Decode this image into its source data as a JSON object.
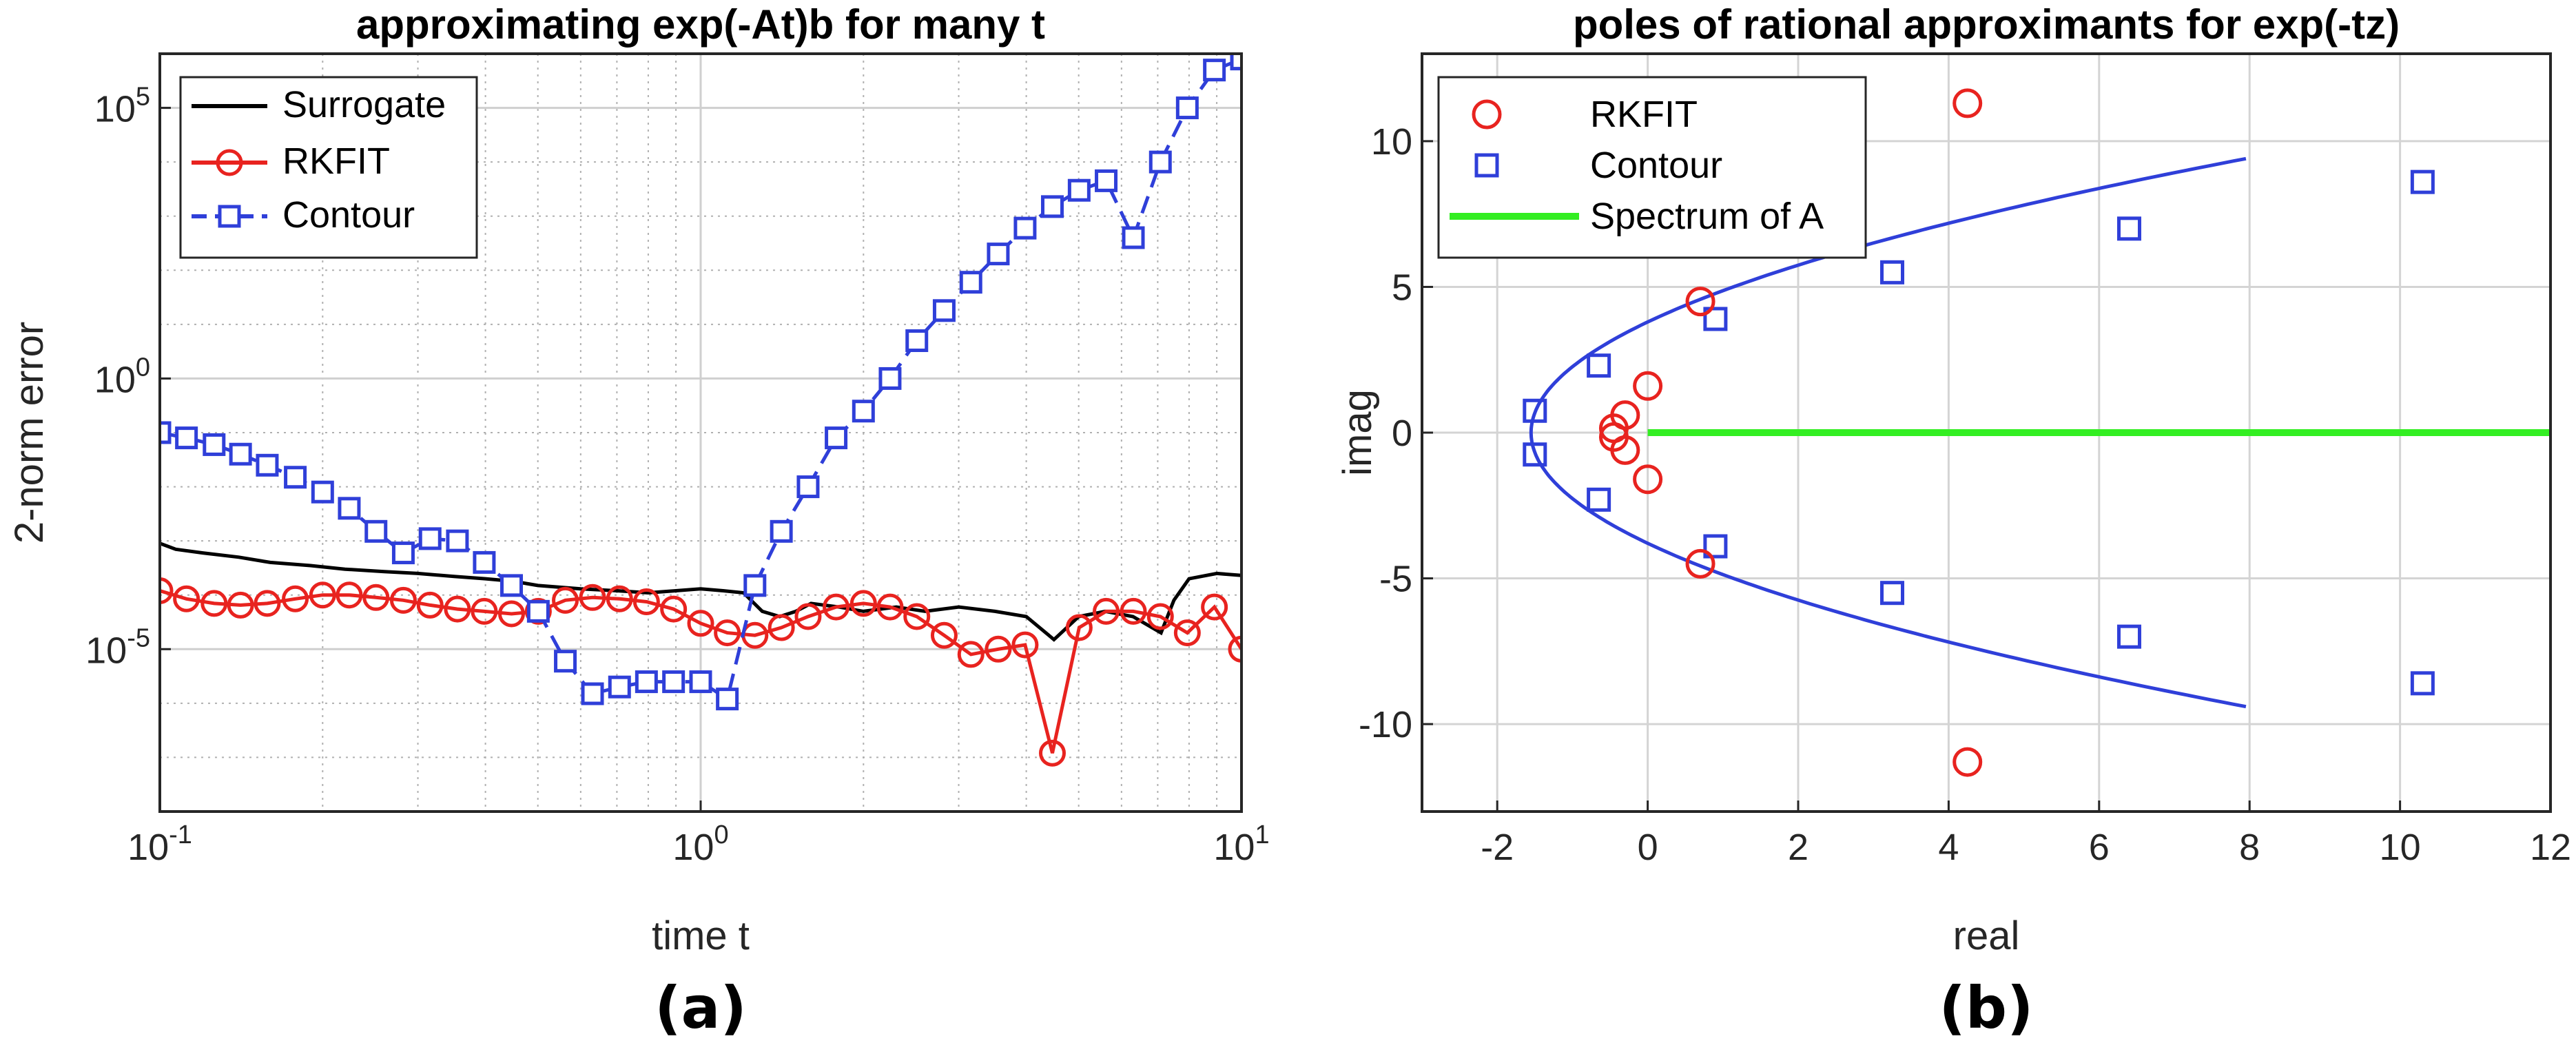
{
  "colors": {
    "surrogate": "#000000",
    "rkfit": "#e8231f",
    "contour": "#2f3fd9",
    "spectrum": "#33ee22",
    "grid": "#d9d9d9"
  },
  "chart_data": [
    {
      "type": "line",
      "panel_label": "(a)",
      "title": "approximating exp(-At)b for many t",
      "xlabel": "time t",
      "ylabel": "2-norm error",
      "xscale": "log",
      "yscale": "log",
      "xlim": [
        0.1,
        10
      ],
      "ylim": [
        1e-08,
        1000000.0
      ],
      "x_ticks": [
        {
          "value": 0.1,
          "base": "10",
          "exp": "-1"
        },
        {
          "value": 1,
          "base": "10",
          "exp": "0"
        },
        {
          "value": 10,
          "base": "10",
          "exp": "1"
        }
      ],
      "y_ticks": [
        {
          "value": 1e-05,
          "base": "10",
          "exp": "-5"
        },
        {
          "value": 1,
          "base": "10",
          "exp": "0"
        },
        {
          "value": 100000.0,
          "base": "10",
          "exp": "5"
        }
      ],
      "grid": true,
      "legend_position": "top-left",
      "series": [
        {
          "name": "Surrogate",
          "style": "solid-line",
          "x": [
            0.1,
            0.107,
            0.12,
            0.14,
            0.16,
            0.19,
            0.22,
            0.26,
            0.3,
            0.35,
            0.4,
            0.45,
            0.5,
            0.6,
            0.7,
            0.8,
            0.9,
            1.0,
            1.1,
            1.2,
            1.3,
            1.4,
            1.5,
            1.6,
            1.8,
            2.0,
            2.3,
            2.6,
            3.0,
            3.5,
            4.0,
            4.5,
            5.0,
            5.6,
            6.3,
            7.1,
            7.5,
            8.0,
            9.0,
            10.0
          ],
          "y": [
            0.0009,
            0.0007,
            0.0006,
            0.0005,
            0.0004,
            0.00035,
            0.0003,
            0.00027,
            0.00025,
            0.00022,
            0.0002,
            0.00018,
            0.00015,
            0.00013,
            0.00012,
            0.00011,
            0.00012,
            0.00013,
            0.00012,
            0.00011,
            5e-05,
            4e-05,
            5e-05,
            7e-05,
            6e-05,
            5e-05,
            6e-05,
            5e-05,
            6e-05,
            5e-05,
            4e-05,
            1.5e-05,
            4e-05,
            5e-05,
            4e-05,
            2e-05,
            8e-05,
            0.0002,
            0.00025,
            0.00023
          ]
        },
        {
          "name": "RKFIT",
          "style": "line-circle-marker",
          "x": [
            0.1,
            0.112,
            0.126,
            0.141,
            0.158,
            0.178,
            0.2,
            0.224,
            0.251,
            0.282,
            0.316,
            0.355,
            0.398,
            0.447,
            0.501,
            0.562,
            0.631,
            0.708,
            0.794,
            0.891,
            1.0,
            1.12,
            1.26,
            1.41,
            1.58,
            1.78,
            2.0,
            2.24,
            2.51,
            2.82,
            3.16,
            3.55,
            3.98,
            4.47,
            5.01,
            5.62,
            6.31,
            7.08,
            7.94,
            8.91,
            10.0
          ],
          "y": [
            0.00012,
            8.5e-05,
            7e-05,
            6.5e-05,
            7e-05,
            8.5e-05,
            0.0001,
            0.0001,
            9e-05,
            8e-05,
            6.5e-05,
            5.5e-05,
            5e-05,
            4.5e-05,
            5e-05,
            8e-05,
            9e-05,
            8.5e-05,
            7.5e-05,
            5.5e-05,
            3e-05,
            2e-05,
            1.8e-05,
            2.5e-05,
            4e-05,
            6e-05,
            7e-05,
            6e-05,
            4e-05,
            1.8e-05,
            8e-06,
            1e-05,
            1.2e-05,
            1.2e-07,
            2.5e-05,
            5e-05,
            5e-05,
            4e-05,
            2e-05,
            6e-05,
            1e-05
          ]
        },
        {
          "name": "Contour",
          "style": "dashed-line-square-marker",
          "x": [
            0.1,
            0.112,
            0.126,
            0.141,
            0.158,
            0.178,
            0.2,
            0.224,
            0.251,
            0.282,
            0.316,
            0.355,
            0.398,
            0.447,
            0.501,
            0.562,
            0.631,
            0.708,
            0.794,
            0.891,
            1.0,
            1.12,
            1.26,
            1.41,
            1.58,
            1.78,
            2.0,
            2.24,
            2.51,
            2.82,
            3.16,
            3.55,
            3.98,
            4.47,
            5.01,
            5.62,
            6.31,
            7.08,
            7.94,
            8.91,
            10.0
          ],
          "y": [
            0.1,
            0.08,
            0.06,
            0.04,
            0.025,
            0.015,
            0.008,
            0.004,
            0.0015,
            0.0006,
            0.0011,
            0.001,
            0.0004,
            0.00015,
            5e-05,
            6e-06,
            1.5e-06,
            2e-06,
            2.5e-06,
            2.5e-06,
            2.5e-06,
            1.2e-06,
            0.00015,
            0.0015,
            0.01,
            0.08,
            0.25,
            1.0,
            5.0,
            18.0,
            60.0,
            200.0,
            600.0,
            1500.0,
            3000.0,
            4500.0,
            400.0,
            10000.0,
            100000.0,
            500000.0,
            800000.0
          ]
        }
      ]
    },
    {
      "type": "scatter",
      "panel_label": "(b)",
      "title": "poles of rational approximants for exp(-tz)",
      "xlabel": "real",
      "ylabel": "imag",
      "xlim": [
        -3,
        12
      ],
      "ylim": [
        -13,
        13
      ],
      "x_ticks": [
        "-2",
        "0",
        "2",
        "4",
        "6",
        "8",
        "10",
        "12"
      ],
      "y_ticks": [
        "-10",
        "-5",
        "0",
        "5",
        "10"
      ],
      "grid": true,
      "legend_position": "top-left",
      "series": [
        {
          "name": "RKFIT",
          "marker": "circle",
          "points": [
            [
              4.25,
              11.3
            ],
            [
              4.25,
              -11.3
            ],
            [
              0.7,
              4.5
            ],
            [
              0.7,
              -4.5
            ],
            [
              0,
              1.6
            ],
            [
              0,
              -1.6
            ],
            [
              -0.3,
              0.6
            ],
            [
              -0.3,
              -0.6
            ],
            [
              -0.45,
              0.15
            ],
            [
              -0.45,
              -0.15
            ]
          ]
        },
        {
          "name": "Contour",
          "marker": "square",
          "curve": "parabola real = -1.55 + imag^2 / 9.3",
          "points": [
            [
              -1.5,
              0.75
            ],
            [
              -1.5,
              -0.75
            ],
            [
              -0.65,
              2.3
            ],
            [
              -0.65,
              -2.3
            ],
            [
              0.9,
              3.9
            ],
            [
              0.9,
              -3.9
            ],
            [
              3.25,
              5.5
            ],
            [
              3.25,
              -5.5
            ],
            [
              6.4,
              7.0
            ],
            [
              6.4,
              -7.0
            ],
            [
              10.3,
              8.6
            ],
            [
              10.3,
              -8.6
            ]
          ]
        },
        {
          "name": "Spectrum of A",
          "marker": "line",
          "x_range": [
            0,
            12
          ],
          "y": 0
        }
      ]
    }
  ]
}
